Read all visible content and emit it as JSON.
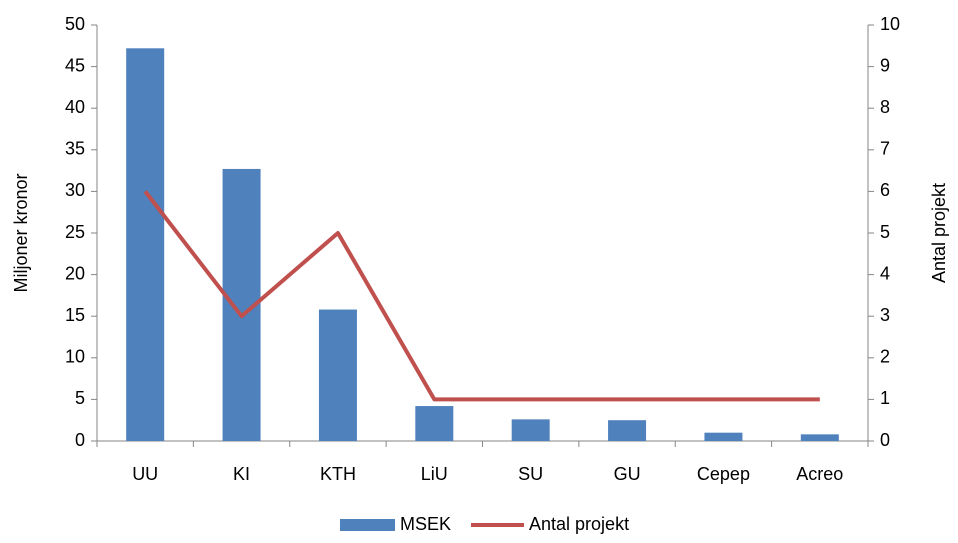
{
  "chart_data": {
    "type": "bar_line",
    "categories": [
      "UU",
      "KI",
      "KTH",
      "LiU",
      "SU",
      "GU",
      "Cepep",
      "Acreo"
    ],
    "series": [
      {
        "name": "MSEK",
        "color": "#4f81bd",
        "type": "bar",
        "axis": "y",
        "values": [
          47.2,
          32.7,
          15.8,
          4.2,
          2.6,
          2.5,
          1.0,
          0.8
        ]
      },
      {
        "name": "Antal projekt",
        "color": "#c0504d",
        "type": "line",
        "axis": "y2",
        "values": [
          6,
          3,
          5,
          1,
          1,
          1,
          1,
          1
        ]
      }
    ],
    "ylabel": "Miljoner kronor",
    "y2label": "Antal projekt",
    "ylim": [
      0,
      50
    ],
    "yticks": [
      0,
      5,
      10,
      15,
      20,
      25,
      30,
      35,
      40,
      45,
      50
    ],
    "y2lim": [
      0,
      10
    ],
    "y2ticks": [
      0,
      1,
      2,
      3,
      4,
      5,
      6,
      7,
      8,
      9,
      10
    ],
    "grid": false,
    "legend": "bottom"
  }
}
